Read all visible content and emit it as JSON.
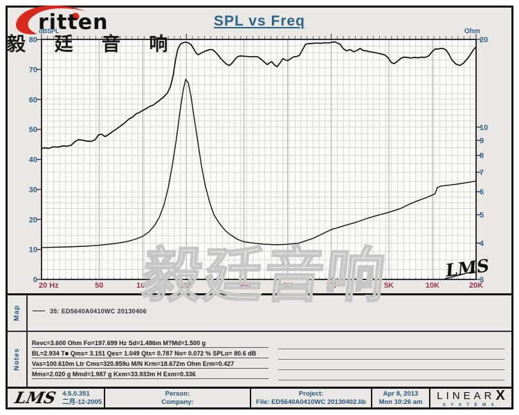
{
  "title": "SPL vs Freq",
  "brand": {
    "logo_text": "ritten",
    "cn_text": "毅 廷 音 响",
    "red": "#D9291C"
  },
  "watermark": "毅廷音响",
  "map": {
    "label": "Map",
    "legend": "35: ED5640A0410WC   20130406"
  },
  "notes": {
    "label": "Notes",
    "lines": [
      "Revc=3.600 Ohm  Fo=197.699 Hz  Sd=1.486m M?Md=1.500 g",
      "BL=2.934 T■  Qms= 3.151  Qes= 1.049  Qts= 0.787  No= 0.072 %  SPLo= 80.6 dB",
      "Vas=100.610m Ltr  Cms=320.859u M/N  Krm=18.672m Ohm  Erm=0.427",
      "Mms=2.020 g  Mmd=1.987 g  Kxm=33.933m H  Exm=0.336"
    ]
  },
  "footer": {
    "lms_logo": "LMS",
    "version": "4.5.0.351",
    "version_date": "二月-12-2005",
    "person_label": "Person:",
    "company_label": "Company:",
    "project_label": "Project:",
    "file_line": "File: ED5640A0410WC  20130402.lib",
    "date": "Apr  8, 2013",
    "time": "Mon 10:26 am",
    "linearx": {
      "name": "LINEAR",
      "x": "X",
      "systems": "SYSTEMS"
    }
  },
  "colors": {
    "accent_blue": "#2E6189",
    "freq_label": "#993350",
    "curve": "#111111",
    "grid_minor": "#CACACA",
    "grid_major": "#A6A6A6",
    "plot_bg": "#FBFBF9",
    "page_bg": "#E9E8E4"
  },
  "chart_data": {
    "type": "line",
    "title": "SPL vs Freq",
    "corner_logo": "LMS",
    "x_axis": {
      "scale": "log",
      "min": 20,
      "max": 20000,
      "ticks": [
        {
          "f": 20,
          "label": "20 Hz"
        },
        {
          "f": 50,
          "label": "50"
        },
        {
          "f": 100,
          "label": "100"
        },
        {
          "f": 200,
          "label": "200"
        },
        {
          "f": 500,
          "label": "500"
        },
        {
          "f": 1000,
          "label": "1K"
        },
        {
          "f": 2000,
          "label": "2K"
        },
        {
          "f": 5000,
          "label": "5K"
        },
        {
          "f": 10000,
          "label": "10K"
        },
        {
          "f": 20000,
          "label": "20K"
        }
      ]
    },
    "y_left": {
      "label": "dBSPL",
      "scale": "linear",
      "min": 0,
      "max": 80,
      "ticks": [
        0,
        10,
        20,
        30,
        40,
        50,
        60,
        70,
        80
      ]
    },
    "y_right": {
      "label": "Ohm",
      "scale": "log",
      "min": 3,
      "max": 20,
      "ticks": [
        3,
        4,
        5,
        6,
        7,
        8,
        9,
        10,
        20
      ]
    },
    "grid": {
      "ohm_lines": [
        3.25,
        3.5,
        3.75,
        4,
        4.25,
        4.5,
        4.75,
        5,
        5.25,
        5.5,
        5.75,
        6,
        6.5,
        7,
        7.5,
        8,
        8.5,
        9,
        9.5,
        10,
        10.5,
        11,
        11.5,
        12,
        12.5,
        13,
        14,
        15,
        16,
        17,
        18,
        19
      ],
      "minor_per_decade": 24
    },
    "series": [
      {
        "name": "SPL (dB)",
        "axis": "left",
        "points": [
          [
            20,
            43.6
          ],
          [
            21,
            43.9
          ],
          [
            22.5,
            43.7
          ],
          [
            24,
            44.2
          ],
          [
            26,
            44.1
          ],
          [
            28,
            44.5
          ],
          [
            30,
            44.4
          ],
          [
            32,
            44.7
          ],
          [
            34,
            45.9
          ],
          [
            36,
            46.6
          ],
          [
            38.5,
            46.4
          ],
          [
            41,
            46.1
          ],
          [
            44,
            46.0
          ],
          [
            47,
            46.6
          ],
          [
            49.5,
            48.2
          ],
          [
            52,
            48.4
          ],
          [
            55,
            47.6
          ],
          [
            58,
            48.3
          ],
          [
            62,
            49.3
          ],
          [
            66,
            50.2
          ],
          [
            70,
            51.1
          ],
          [
            75,
            52.2
          ],
          [
            80,
            53.4
          ],
          [
            85,
            54.1
          ],
          [
            90,
            55.2
          ],
          [
            95,
            55.7
          ],
          [
            100,
            56.3
          ],
          [
            106,
            57.0
          ],
          [
            112,
            57.7
          ],
          [
            118,
            58.1
          ],
          [
            125,
            59.0
          ],
          [
            132,
            59.9
          ],
          [
            140,
            60.9
          ],
          [
            148,
            62.2
          ],
          [
            155,
            64.2
          ],
          [
            162,
            68.0
          ],
          [
            168,
            73.0
          ],
          [
            174,
            76.6
          ],
          [
            181,
            78.3
          ],
          [
            189,
            78.9
          ],
          [
            197,
            79.1
          ],
          [
            206,
            78.9
          ],
          [
            215,
            78.3
          ],
          [
            224,
            77.0
          ],
          [
            233,
            75.5
          ],
          [
            241,
            74.9
          ],
          [
            252,
            75.4
          ],
          [
            264,
            75.9
          ],
          [
            277,
            76.3
          ],
          [
            291,
            76.6
          ],
          [
            303,
            76.6
          ],
          [
            316,
            75.9
          ],
          [
            331,
            74.8
          ],
          [
            346,
            73.6
          ],
          [
            362,
            72.6
          ],
          [
            378,
            71.8
          ],
          [
            396,
            71.3
          ],
          [
            412,
            72.0
          ],
          [
            432,
            73.3
          ],
          [
            452,
            74.3
          ],
          [
            476,
            74.5
          ],
          [
            502,
            74.4
          ],
          [
            532,
            74.3
          ],
          [
            564,
            74.2
          ],
          [
            592,
            74.3
          ],
          [
            622,
            74.2
          ],
          [
            660,
            73.3
          ],
          [
            700,
            72.2
          ],
          [
            724,
            71.6
          ],
          [
            746,
            72.1
          ],
          [
            776,
            72.6
          ],
          [
            812,
            71.5
          ],
          [
            846,
            70.9
          ],
          [
            890,
            72.3
          ],
          [
            926,
            73.6
          ],
          [
            962,
            73.2
          ],
          [
            1000,
            72.9
          ],
          [
            1050,
            73.6
          ],
          [
            1100,
            74.2
          ],
          [
            1155,
            74.3
          ],
          [
            1205,
            74.7
          ],
          [
            1255,
            76.2
          ],
          [
            1330,
            78.4
          ],
          [
            1400,
            78.6
          ],
          [
            1500,
            78.7
          ],
          [
            1600,
            78.8
          ],
          [
            1700,
            78.7
          ],
          [
            1800,
            78.9
          ],
          [
            1900,
            78.8
          ],
          [
            2000,
            79.0
          ],
          [
            2110,
            79.2
          ],
          [
            2210,
            78.8
          ],
          [
            2310,
            78.3
          ],
          [
            2420,
            76.9
          ],
          [
            2550,
            76.2
          ],
          [
            2700,
            76.6
          ],
          [
            2860,
            75.9
          ],
          [
            3010,
            76.3
          ],
          [
            3160,
            77.0
          ],
          [
            3320,
            76.3
          ],
          [
            3480,
            76.2
          ],
          [
            3700,
            75.9
          ],
          [
            4000,
            75.6
          ],
          [
            4380,
            75.2
          ],
          [
            4700,
            74.8
          ],
          [
            4950,
            73.8
          ],
          [
            5200,
            72.3
          ],
          [
            5450,
            71.9
          ],
          [
            5750,
            72.8
          ],
          [
            6050,
            73.7
          ],
          [
            6350,
            74.1
          ],
          [
            6700,
            74.0
          ],
          [
            7100,
            73.8
          ],
          [
            7500,
            74.0
          ],
          [
            7950,
            73.9
          ],
          [
            8400,
            74.1
          ],
          [
            8900,
            74.0
          ],
          [
            9400,
            74.5
          ],
          [
            9900,
            75.8
          ],
          [
            10400,
            76.8
          ],
          [
            10900,
            76.8
          ],
          [
            11400,
            77.0
          ],
          [
            11900,
            76.9
          ],
          [
            12400,
            76.5
          ],
          [
            12900,
            75.3
          ],
          [
            13600,
            73.2
          ],
          [
            14500,
            71.8
          ],
          [
            15400,
            71.3
          ],
          [
            16300,
            72.0
          ],
          [
            17300,
            73.4
          ],
          [
            18300,
            75.0
          ],
          [
            19200,
            76.6
          ],
          [
            20000,
            77.5
          ]
        ]
      },
      {
        "name": "Impedance (Ohm)",
        "axis": "right",
        "points": [
          [
            20,
            3.86
          ],
          [
            30,
            3.88
          ],
          [
            40,
            3.9
          ],
          [
            50,
            3.93
          ],
          [
            60,
            3.97
          ],
          [
            70,
            4.01
          ],
          [
            80,
            4.06
          ],
          [
            90,
            4.13
          ],
          [
            100,
            4.22
          ],
          [
            110,
            4.36
          ],
          [
            120,
            4.58
          ],
          [
            130,
            4.9
          ],
          [
            140,
            5.4
          ],
          [
            150,
            6.2
          ],
          [
            160,
            7.4
          ],
          [
            170,
            9.0
          ],
          [
            180,
            11.2
          ],
          [
            190,
            13.4
          ],
          [
            198,
            14.6
          ],
          [
            206,
            14.2
          ],
          [
            215,
            12.8
          ],
          [
            225,
            11.0
          ],
          [
            240,
            8.9
          ],
          [
            255,
            7.3
          ],
          [
            270,
            6.3
          ],
          [
            290,
            5.5
          ],
          [
            310,
            5.0
          ],
          [
            340,
            4.65
          ],
          [
            370,
            4.42
          ],
          [
            400,
            4.28
          ],
          [
            450,
            4.12
          ],
          [
            500,
            4.04
          ],
          [
            600,
            3.99
          ],
          [
            700,
            3.96
          ],
          [
            800,
            3.95
          ],
          [
            900,
            3.95
          ],
          [
            1000,
            3.96
          ],
          [
            1200,
            4.0
          ],
          [
            1500,
            4.15
          ],
          [
            2000,
            4.45
          ],
          [
            2500,
            4.6
          ],
          [
            3000,
            4.72
          ],
          [
            3500,
            4.85
          ],
          [
            4000,
            4.95
          ],
          [
            5000,
            5.1
          ],
          [
            6000,
            5.25
          ],
          [
            7000,
            5.45
          ],
          [
            8000,
            5.6
          ],
          [
            9000,
            5.72
          ],
          [
            10000,
            5.85
          ],
          [
            10400,
            5.9
          ],
          [
            10800,
            6.2
          ],
          [
            11500,
            6.28
          ],
          [
            13000,
            6.32
          ],
          [
            15000,
            6.38
          ],
          [
            17000,
            6.44
          ],
          [
            19000,
            6.5
          ],
          [
            20000,
            6.53
          ]
        ]
      }
    ]
  }
}
